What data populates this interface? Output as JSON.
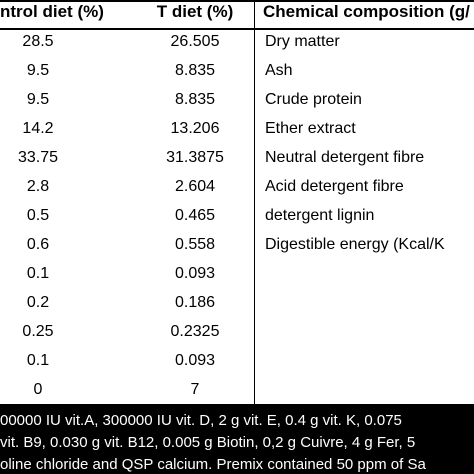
{
  "table": {
    "headers": {
      "control_diet": "ntrol diet (%)",
      "t_diet": "T diet (%)",
      "composition": "Chemical composition (g/"
    },
    "rows": [
      {
        "control": "28.5",
        "t": "26.505",
        "composition": "Dry matter"
      },
      {
        "control": "9.5",
        "t": "8.835",
        "composition": "Ash"
      },
      {
        "control": "9.5",
        "t": "8.835",
        "composition": "Crude protein"
      },
      {
        "control": "14.2",
        "t": "13.206",
        "composition": "Ether extract"
      },
      {
        "control": "33.75",
        "t": "31.3875",
        "composition": "Neutral detergent fibre"
      },
      {
        "control": "2.8",
        "t": "2.604",
        "composition": "Acid detergent fibre"
      },
      {
        "control": "0.5",
        "t": "0.465",
        "composition": "detergent lignin"
      },
      {
        "control": "0.6",
        "t": "0.558",
        "composition": "Digestible energy  (Kcal/K"
      },
      {
        "control": "0.1",
        "t": "0.093",
        "composition": ""
      },
      {
        "control": "0.2",
        "t": "0.186",
        "composition": ""
      },
      {
        "control": "0.25",
        "t": "0.2325",
        "composition": ""
      },
      {
        "control": "0.1",
        "t": "0.093",
        "composition": ""
      },
      {
        "control": "0",
        "t": "7",
        "composition": ""
      }
    ]
  },
  "footnote": {
    "lines": [
      "00000 IU vit.A, 300000 IU vit. D, 2 g vit. E, 0.4 g vit. K, 0.075",
      "vit. B9, 0.030 g vit. B12, 0.005 g Biotin, 0,2 g Cuivre, 4 g Fer, 5",
      "oline chloride and QSP calcium. Premix contained 50 ppm of Sa"
    ]
  }
}
